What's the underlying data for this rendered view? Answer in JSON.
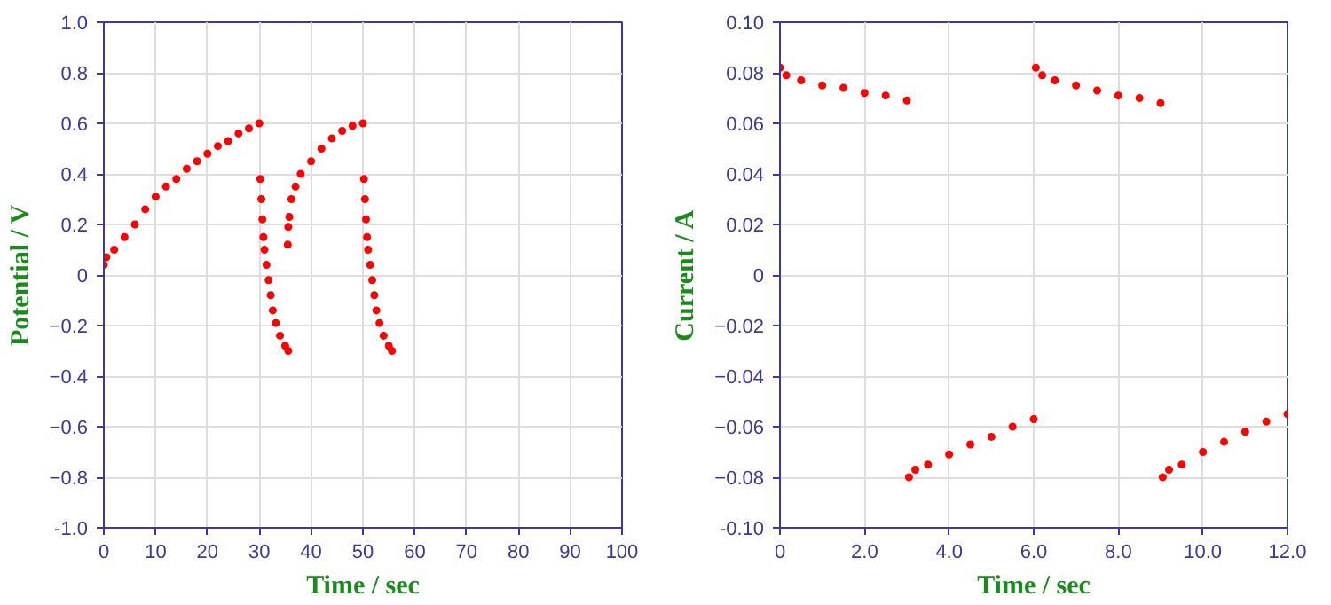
{
  "chart_data": [
    {
      "type": "scatter",
      "xlabel": "Time / sec",
      "ylabel": "Potential / V",
      "marker": "circle",
      "grid": true,
      "xlim": [
        0,
        100
      ],
      "ylim": [
        -1.0,
        1.0
      ],
      "xticks": [
        0,
        10,
        20,
        30,
        40,
        50,
        60,
        70,
        80,
        90,
        100
      ],
      "yticks": [
        {
          "value": -1.0,
          "label": "-1.0"
        },
        -0.8,
        -0.6,
        -0.4,
        -0.2,
        0,
        0.2,
        0.4,
        0.6,
        0.8,
        {
          "value": 1.0,
          "label": "1.0"
        }
      ],
      "series": [
        {
          "color": "#ff0000",
          "x": [
            0,
            0.5,
            2,
            4,
            6,
            8,
            10,
            12,
            14,
            16,
            18,
            20,
            22,
            24,
            26,
            28,
            30,
            30.2,
            30.4,
            30.6,
            30.8,
            31,
            31.4,
            31.8,
            32.2,
            32.6,
            33.2,
            34,
            35,
            35.6,
            35.5,
            35.6,
            35.8,
            36.2,
            37,
            38,
            40,
            42,
            44,
            46,
            48,
            50,
            50.2,
            50.4,
            50.6,
            50.8,
            51,
            51.4,
            51.8,
            52.2,
            52.6,
            53.2,
            54,
            55,
            55.6
          ],
          "values": [
            0.04,
            0.07,
            0.1,
            0.15,
            0.2,
            0.26,
            0.31,
            0.35,
            0.38,
            0.42,
            0.45,
            0.48,
            0.51,
            0.53,
            0.56,
            0.58,
            0.6,
            0.38,
            0.3,
            0.22,
            0.15,
            0.1,
            0.04,
            -0.02,
            -0.08,
            -0.14,
            -0.19,
            -0.24,
            -0.28,
            -0.3,
            0.12,
            0.19,
            0.23,
            0.3,
            0.35,
            0.4,
            0.45,
            0.5,
            0.54,
            0.57,
            0.59,
            0.6,
            0.38,
            0.3,
            0.22,
            0.15,
            0.1,
            0.04,
            -0.02,
            -0.08,
            -0.14,
            -0.19,
            -0.24,
            -0.28,
            -0.3
          ]
        }
      ]
    },
    {
      "type": "scatter",
      "xlabel": "Time / sec",
      "ylabel": "Current / A",
      "marker": "circle",
      "grid": true,
      "xlim": [
        0,
        12
      ],
      "ylim": [
        -0.1,
        0.1
      ],
      "xticks": [
        0,
        {
          "value": 2,
          "label": "2.0"
        },
        {
          "value": 4,
          "label": "4.0"
        },
        {
          "value": 6,
          "label": "6.0"
        },
        {
          "value": 8,
          "label": "8.0"
        },
        {
          "value": 10,
          "label": "10.0"
        },
        {
          "value": 12,
          "label": "12.0"
        }
      ],
      "yticks": [
        {
          "value": -0.1,
          "label": "-0.10"
        },
        -0.08,
        -0.06,
        -0.04,
        -0.02,
        0,
        0.02,
        0.04,
        0.06,
        0.08,
        {
          "value": 0.1,
          "label": "0.10"
        }
      ],
      "series": [
        {
          "color": "#ff0000",
          "x": [
            0,
            0.15,
            0.5,
            1,
            1.5,
            2,
            2.5,
            3,
            3.05,
            3.2,
            3.5,
            4,
            4.5,
            5,
            5.5,
            6,
            6.05,
            6.2,
            6.5,
            7,
            7.5,
            8,
            8.5,
            9,
            9.05,
            9.2,
            9.5,
            10,
            10.5,
            11,
            11.5,
            12
          ],
          "values": [
            0.082,
            0.079,
            0.077,
            0.075,
            0.074,
            0.072,
            0.071,
            0.069,
            -0.08,
            -0.077,
            -0.075,
            -0.071,
            -0.067,
            -0.064,
            -0.06,
            -0.057,
            0.082,
            0.079,
            0.077,
            0.075,
            0.073,
            0.071,
            0.07,
            0.068,
            -0.08,
            -0.077,
            -0.075,
            -0.07,
            -0.066,
            -0.062,
            -0.058,
            -0.055
          ]
        }
      ]
    }
  ]
}
